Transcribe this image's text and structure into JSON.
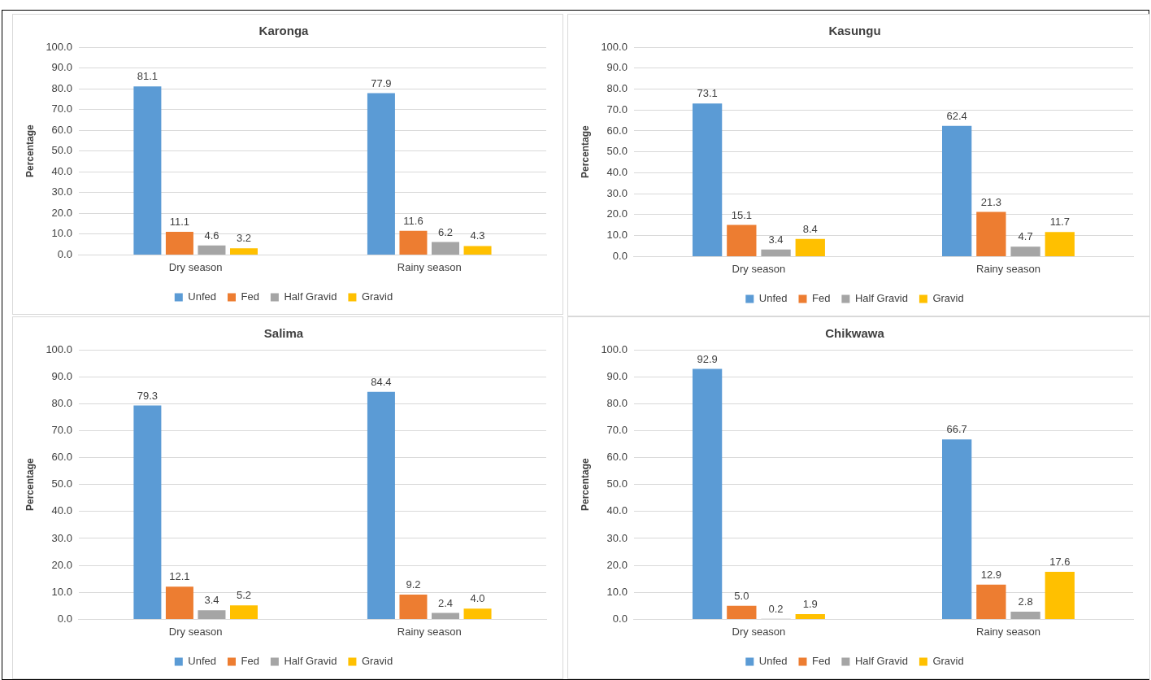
{
  "chart_data": [
    {
      "type": "bar",
      "title": "Karonga",
      "ylabel": "Percentage",
      "categories": [
        "Dry season",
        "Rainy season"
      ],
      "series": [
        {
          "name": "Unfed",
          "color": "#5b9bd5",
          "values": [
            81.1,
            77.9
          ],
          "value_labels": [
            "81.1",
            "77.9"
          ]
        },
        {
          "name": "Fed",
          "color": "#ed7d31",
          "values": [
            11.1,
            11.6
          ],
          "value_labels": [
            "11.1",
            "11.6"
          ]
        },
        {
          "name": "Half Gravid",
          "color": "#a5a5a5",
          "values": [
            4.6,
            6.2
          ],
          "value_labels": [
            "4.6",
            "6.2"
          ]
        },
        {
          "name": "Gravid",
          "color": "#ffc000",
          "values": [
            3.2,
            4.3
          ],
          "value_labels": [
            "3.2",
            "4.3"
          ]
        }
      ],
      "ylim": [
        0,
        100
      ],
      "yticks": [
        {
          "value": 0,
          "label": "0.0"
        },
        {
          "value": 10,
          "label": "10.0"
        },
        {
          "value": 20,
          "label": "20.0"
        },
        {
          "value": 30,
          "label": "30.0"
        },
        {
          "value": 40,
          "label": "40.0"
        },
        {
          "value": 50,
          "label": "50.0"
        },
        {
          "value": 60,
          "label": "60.0"
        },
        {
          "value": 70,
          "label": "70.0"
        },
        {
          "value": 80,
          "label": "80.0"
        },
        {
          "value": 90,
          "label": "90.0"
        },
        {
          "value": 100,
          "label": "100.0"
        }
      ],
      "grid": "y",
      "legend": "bottom"
    },
    {
      "type": "bar",
      "title": "Kasungu",
      "ylabel": "Percentage",
      "categories": [
        "Dry season",
        "Rainy season"
      ],
      "series": [
        {
          "name": "Unfed",
          "color": "#5b9bd5",
          "values": [
            73.1,
            62.4
          ],
          "value_labels": [
            "73.1",
            "62.4"
          ]
        },
        {
          "name": "Fed",
          "color": "#ed7d31",
          "values": [
            15.1,
            21.3
          ],
          "value_labels": [
            "15.1",
            "21.3"
          ]
        },
        {
          "name": "Half Gravid",
          "color": "#a5a5a5",
          "values": [
            3.4,
            4.7
          ],
          "value_labels": [
            "3.4",
            "4.7"
          ]
        },
        {
          "name": "Gravid",
          "color": "#ffc000",
          "values": [
            8.4,
            11.7
          ],
          "value_labels": [
            "8.4",
            "11.7"
          ]
        }
      ],
      "ylim": [
        0,
        100
      ],
      "yticks": [
        {
          "value": 0,
          "label": "0.0"
        },
        {
          "value": 10,
          "label": "10.0"
        },
        {
          "value": 20,
          "label": "20.0"
        },
        {
          "value": 30,
          "label": "30.0"
        },
        {
          "value": 40,
          "label": "40.0"
        },
        {
          "value": 50,
          "label": "50.0"
        },
        {
          "value": 60,
          "label": "60.0"
        },
        {
          "value": 70,
          "label": "70.0"
        },
        {
          "value": 80,
          "label": "80.0"
        },
        {
          "value": 90,
          "label": "90.0"
        },
        {
          "value": 100,
          "label": "100.0"
        }
      ],
      "grid": "y",
      "legend": "bottom"
    },
    {
      "type": "bar",
      "title": "Salima",
      "ylabel": "Percentage",
      "categories": [
        "Dry season",
        "Rainy season"
      ],
      "series": [
        {
          "name": "Unfed",
          "color": "#5b9bd5",
          "values": [
            79.3,
            84.4
          ],
          "value_labels": [
            "79.3",
            "84.4"
          ]
        },
        {
          "name": "Fed",
          "color": "#ed7d31",
          "values": [
            12.1,
            9.2
          ],
          "value_labels": [
            "12.1",
            "9.2"
          ]
        },
        {
          "name": "Half Gravid",
          "color": "#a5a5a5",
          "values": [
            3.4,
            2.4
          ],
          "value_labels": [
            "3.4",
            "2.4"
          ]
        },
        {
          "name": "Gravid",
          "color": "#ffc000",
          "values": [
            5.2,
            4.0
          ],
          "value_labels": [
            "5.2",
            "4.0"
          ]
        }
      ],
      "ylim": [
        0,
        100
      ],
      "yticks": [
        {
          "value": 0,
          "label": "0.0"
        },
        {
          "value": 10,
          "label": "10.0"
        },
        {
          "value": 20,
          "label": "20.0"
        },
        {
          "value": 30,
          "label": "30.0"
        },
        {
          "value": 40,
          "label": "40.0"
        },
        {
          "value": 50,
          "label": "50.0"
        },
        {
          "value": 60,
          "label": "60.0"
        },
        {
          "value": 70,
          "label": "70.0"
        },
        {
          "value": 80,
          "label": "80.0"
        },
        {
          "value": 90,
          "label": "90.0"
        },
        {
          "value": 100,
          "label": "100.0"
        }
      ],
      "grid": "y",
      "legend": "bottom"
    },
    {
      "type": "bar",
      "title": "Chikwawa",
      "ylabel": "Percentage",
      "categories": [
        "Dry season",
        "Rainy season"
      ],
      "series": [
        {
          "name": "Unfed",
          "color": "#5b9bd5",
          "values": [
            92.9,
            66.7
          ],
          "value_labels": [
            "92.9",
            "66.7"
          ]
        },
        {
          "name": "Fed",
          "color": "#ed7d31",
          "values": [
            5.0,
            12.9
          ],
          "value_labels": [
            "5.0",
            "12.9"
          ]
        },
        {
          "name": "Half Gravid",
          "color": "#a5a5a5",
          "values": [
            0.2,
            2.8
          ],
          "value_labels": [
            "0.2",
            "2.8"
          ]
        },
        {
          "name": "Gravid",
          "color": "#ffc000",
          "values": [
            1.9,
            17.6
          ],
          "value_labels": [
            "1.9",
            "17.6"
          ]
        }
      ],
      "ylim": [
        0,
        100
      ],
      "yticks": [
        {
          "value": 0,
          "label": "0.0"
        },
        {
          "value": 10,
          "label": "10.0"
        },
        {
          "value": 20,
          "label": "20.0"
        },
        {
          "value": 30,
          "label": "30.0"
        },
        {
          "value": 40,
          "label": "40.0"
        },
        {
          "value": 50,
          "label": "50.0"
        },
        {
          "value": 60,
          "label": "60.0"
        },
        {
          "value": 70,
          "label": "70.0"
        },
        {
          "value": 80,
          "label": "80.0"
        },
        {
          "value": 90,
          "label": "90.0"
        },
        {
          "value": 100,
          "label": "100.0"
        }
      ],
      "grid": "y",
      "legend": "bottom"
    }
  ]
}
